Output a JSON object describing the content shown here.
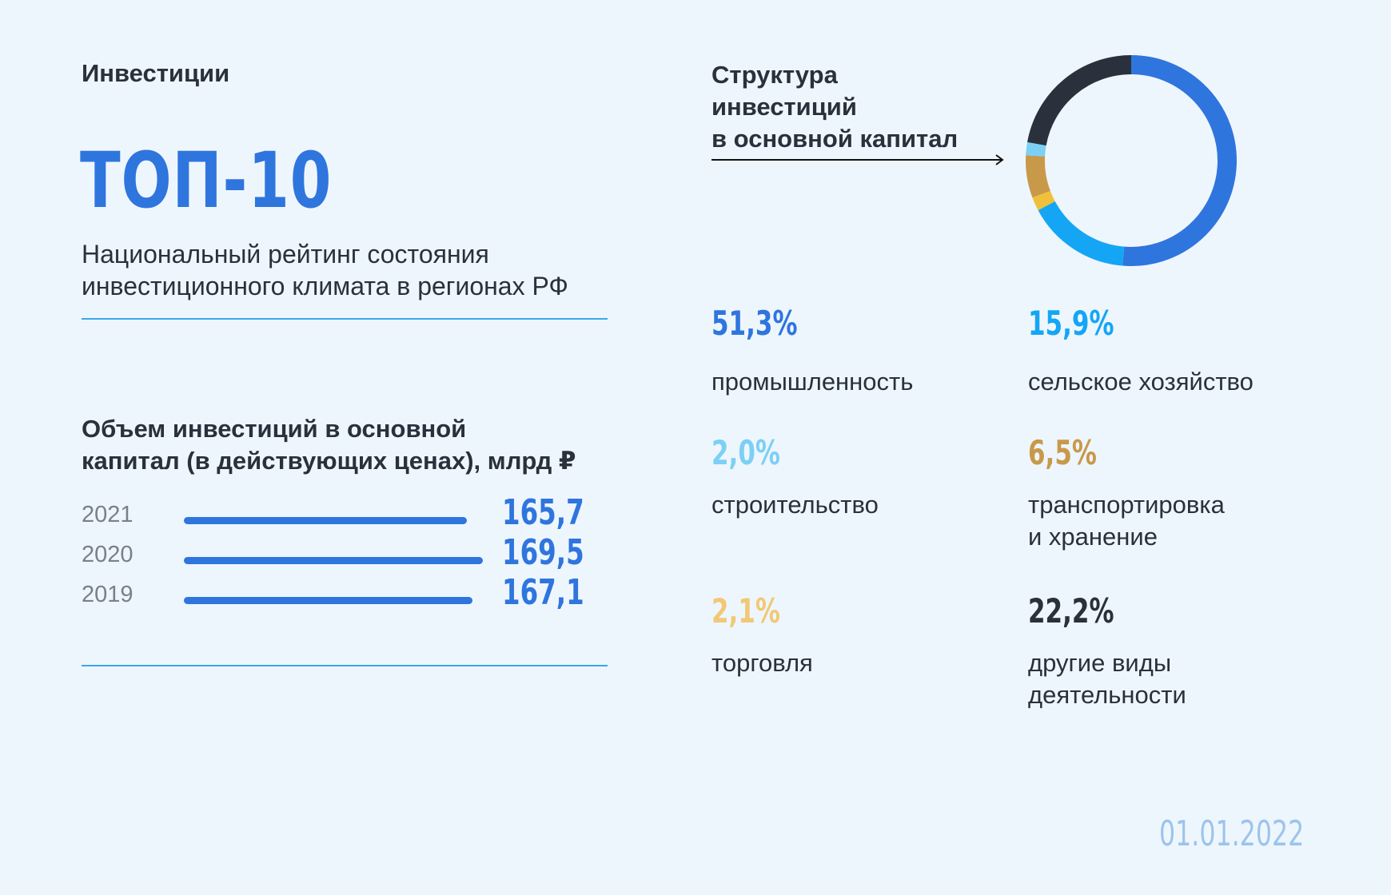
{
  "header": {
    "section_label": "Инвестиции",
    "top_title": "ТОП-10",
    "subtitle_line1": "Национальный рейтинг состояния",
    "subtitle_line2": "инвестиционного климата в регионах РФ"
  },
  "volume": {
    "title_line1": "Объем инвестиций в основной",
    "title_line2": "капитал (в действующих ценах), млрд ₽"
  },
  "structure": {
    "title_line1": "Структура",
    "title_line2": "инвестиций",
    "title_line3": "в основной капитал"
  },
  "date": "01.01.2022",
  "chart_data": [
    {
      "type": "bar",
      "orientation": "horizontal",
      "title": "Объем инвестиций в основной капитал (в действующих ценах), млрд ₽",
      "categories": [
        "2021",
        "2020",
        "2019"
      ],
      "values": [
        165.7,
        169.5,
        167.1
      ],
      "labels": [
        "165,7",
        "169,5",
        "167,1"
      ],
      "colors": {
        "bar": "#2f75de"
      }
    },
    {
      "type": "pie",
      "variant": "donut",
      "title": "Структура инвестиций в основной капитал",
      "slices": [
        {
          "name": "промышленность",
          "name_line2": "",
          "value": 51.3,
          "label": "51,3%",
          "color": "#2f75de"
        },
        {
          "name": "сельское хозяйство",
          "name_line2": "",
          "value": 15.9,
          "label": "15,9%",
          "color": "#14a6f5"
        },
        {
          "name": "торговля",
          "name_line2": "",
          "value": 2.1,
          "label": "2,1%",
          "color": "#f0c03a"
        },
        {
          "name": "транспортировка",
          "name_line2": "и хранение",
          "value": 6.5,
          "label": "6,5%",
          "color": "#c9994a"
        },
        {
          "name": "строительство",
          "name_line2": "",
          "value": 2.0,
          "label": "2,0%",
          "color": "#7cd0f5"
        },
        {
          "name": "другие виды",
          "name_line2": "деятельности",
          "value": 22.2,
          "label": "22,2%",
          "color": "#2a303c"
        }
      ],
      "legend_label_colors": {
        "торговля": "#f2c877",
        "другие виды": "#2a303c"
      }
    }
  ]
}
